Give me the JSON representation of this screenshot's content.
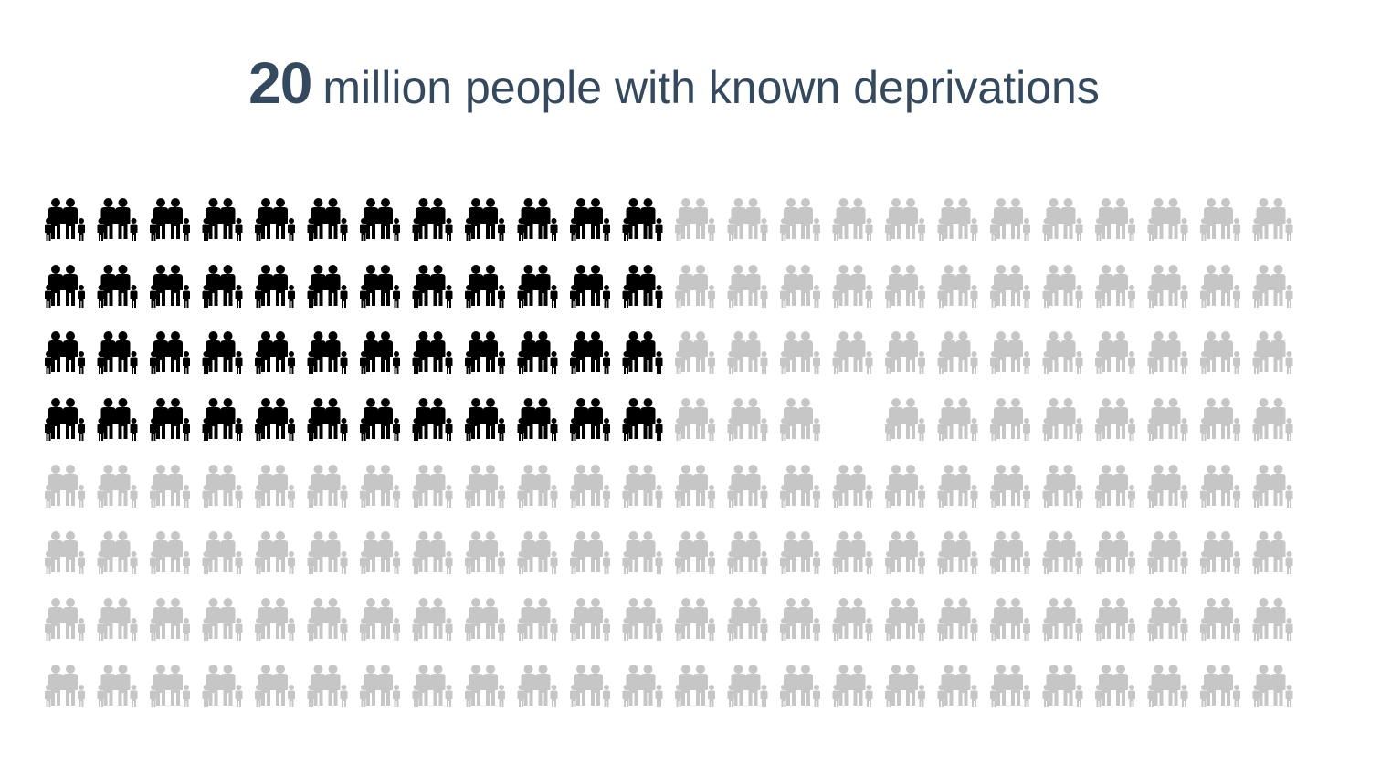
{
  "headline": {
    "value": "20",
    "text": "million people with known deprivations"
  },
  "colors": {
    "highlight": "#000000",
    "base": "#c6c6c6",
    "headline": "#34495e"
  },
  "icon": "family-icon",
  "chart_data": {
    "type": "pictogram",
    "rows": 8,
    "columns": 24,
    "total_icons": 191,
    "highlighted_icons": 48,
    "highlighted_block": {
      "rows": 4,
      "columns": 12
    },
    "gap": {
      "row": 4,
      "column": 16
    }
  }
}
